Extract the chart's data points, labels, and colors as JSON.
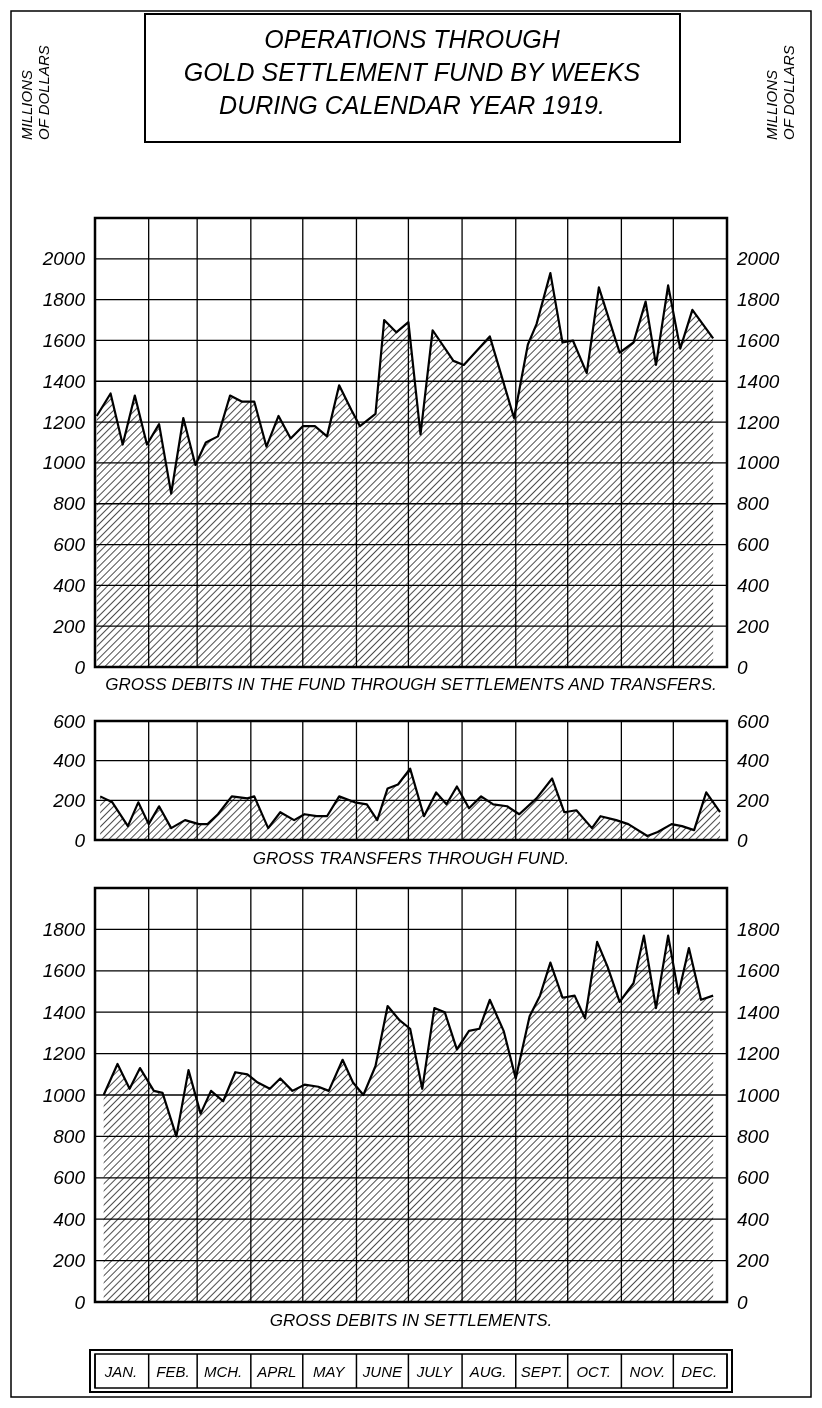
{
  "chart_data": [
    {
      "type": "area",
      "title": "OPERATIONS THROUGH\nGOLD SETTLEMENT FUND BY WEEKS\nDURING CALENDAR YEAR 1919.",
      "ylabel": "MILLIONS OF DOLLARS",
      "y2label": "MILLIONS OF DOLLARS",
      "xlabel": "GROSS DEBITS IN THE FUND THROUGH SETTLEMENTS AND TRANSFERS.",
      "xlim": [
        "1919-01-01",
        "1920-01-01"
      ],
      "xticks": [
        {
          "value": "1919-01-01",
          "label": null
        },
        {
          "value": "1919-02-01",
          "label": null
        },
        {
          "value": "1919-03-01",
          "label": null
        },
        {
          "value": "1919-04-01",
          "label": null
        },
        {
          "value": "1919-05-01",
          "label": null
        },
        {
          "value": "1919-06-01",
          "label": null
        },
        {
          "value": "1919-07-01",
          "label": null
        },
        {
          "value": "1919-08-01",
          "label": null
        },
        {
          "value": "1919-09-01",
          "label": null
        },
        {
          "value": "1919-10-01",
          "label": null
        },
        {
          "value": "1919-11-01",
          "label": null
        },
        {
          "value": "1919-12-01",
          "label": null
        },
        {
          "value": "1920-01-01",
          "label": null
        }
      ],
      "ylim": [
        0,
        2200
      ],
      "yticks": [
        0,
        200,
        400,
        600,
        800,
        1000,
        1200,
        1400,
        1600,
        1800,
        2000
      ],
      "y2lim": [
        0,
        2200
      ],
      "y2ticks": [
        0,
        200,
        400,
        600,
        800,
        1000,
        1200,
        1400,
        1600,
        1800,
        2000
      ],
      "grid": true,
      "tick_labels": "y",
      "series": [
        {
          "color": "#000000",
          "x": [
            "1919-01-02",
            "1919-01-10",
            "1919-01-17",
            "1919-01-24",
            "1919-01-31",
            "1919-02-07",
            "1919-02-14",
            "1919-02-21",
            "1919-02-28",
            "1919-03-06",
            "1919-03-13",
            "1919-03-20",
            "1919-03-27",
            "1919-04-03",
            "1919-04-10",
            "1919-04-17",
            "1919-04-24",
            "1919-05-01",
            "1919-05-08",
            "1919-05-15",
            "1919-05-22",
            "1919-05-29",
            "1919-06-03",
            "1919-06-12",
            "1919-06-17",
            "1919-06-24",
            "1919-07-01",
            "1919-07-08",
            "1919-07-15",
            "1919-07-27",
            "1919-08-02",
            "1919-08-17",
            "1919-08-31",
            "1919-09-08",
            "1919-09-13",
            "1919-09-21",
            "1919-09-28",
            "1919-10-04",
            "1919-10-12",
            "1919-10-19",
            "1919-10-31",
            "1919-11-08",
            "1919-11-15",
            "1919-11-21",
            "1919-11-28",
            "1919-12-05",
            "1919-12-12",
            "1919-12-24"
          ],
          "values": [
            1230,
            1340,
            1090,
            1330,
            1090,
            1190,
            850,
            1220,
            990,
            1100,
            1130,
            1330,
            1300,
            1300,
            1080,
            1230,
            1120,
            1180,
            1180,
            1130,
            1380,
            1260,
            1180,
            1240,
            1700,
            1640,
            1690,
            1140,
            1650,
            1500,
            1480,
            1620,
            1220,
            1580,
            1680,
            1930,
            1590,
            1600,
            1440,
            1860,
            1540,
            1590,
            1790,
            1480,
            1870,
            1560,
            1750,
            1610
          ]
        }
      ]
    },
    {
      "type": "area",
      "xlabel": "GROSS TRANSFERS THROUGH FUND.",
      "xlim": [
        "1919-01-01",
        "1920-01-01"
      ],
      "xticks": [
        {
          "value": "1919-01-01",
          "label": null
        },
        {
          "value": "1919-02-01",
          "label": null
        },
        {
          "value": "1919-03-01",
          "label": null
        },
        {
          "value": "1919-04-01",
          "label": null
        },
        {
          "value": "1919-05-01",
          "label": null
        },
        {
          "value": "1919-06-01",
          "label": null
        },
        {
          "value": "1919-07-01",
          "label": null
        },
        {
          "value": "1919-08-01",
          "label": null
        },
        {
          "value": "1919-09-01",
          "label": null
        },
        {
          "value": "1919-10-01",
          "label": null
        },
        {
          "value": "1919-11-01",
          "label": null
        },
        {
          "value": "1919-12-01",
          "label": null
        },
        {
          "value": "1920-01-01",
          "label": null
        }
      ],
      "ylim": [
        0,
        600
      ],
      "yticks": [
        0,
        200,
        400,
        600
      ],
      "y2lim": [
        0,
        600
      ],
      "y2ticks": [
        0,
        200,
        400,
        600
      ],
      "grid": true,
      "tick_labels": "y",
      "series": [
        {
          "color": "#000000",
          "x": [
            "1919-01-04",
            "1919-01-11",
            "1919-01-20",
            "1919-01-26",
            "1919-02-01",
            "1919-02-07",
            "1919-02-14",
            "1919-02-22",
            "1919-03-02",
            "1919-03-07",
            "1919-03-13",
            "1919-03-21",
            "1919-03-30",
            "1919-04-03",
            "1919-04-11",
            "1919-04-18",
            "1919-04-26",
            "1919-05-02",
            "1919-05-09",
            "1919-05-15",
            "1919-05-22",
            "1919-05-31",
            "1919-06-07",
            "1919-06-13",
            "1919-06-19",
            "1919-06-25",
            "1919-07-02",
            "1919-07-10",
            "1919-07-17",
            "1919-07-23",
            "1919-07-29",
            "1919-08-05",
            "1919-08-12",
            "1919-08-19",
            "1919-08-27",
            "1919-09-03",
            "1919-09-13",
            "1919-09-22",
            "1919-09-29",
            "1919-10-06",
            "1919-10-15",
            "1919-10-20",
            "1919-10-29",
            "1919-11-05",
            "1919-11-16",
            "1919-11-22",
            "1919-11-30",
            "1919-12-06",
            "1919-12-13",
            "1919-12-20",
            "1919-12-28"
          ],
          "values": [
            220,
            190,
            70,
            190,
            80,
            170,
            60,
            100,
            80,
            80,
            130,
            220,
            210,
            220,
            60,
            140,
            100,
            130,
            120,
            120,
            220,
            190,
            180,
            100,
            260,
            280,
            360,
            120,
            240,
            180,
            270,
            160,
            220,
            180,
            170,
            130,
            210,
            310,
            140,
            150,
            60,
            120,
            100,
            80,
            20,
            40,
            80,
            70,
            50,
            240,
            140
          ]
        }
      ]
    },
    {
      "type": "area",
      "xlabel": "GROSS DEBITS IN SETTLEMENTS.",
      "xlim": [
        "1919-01-01",
        "1920-01-01"
      ],
      "xticks": [
        {
          "value": "1919-01-01",
          "label": null
        },
        {
          "value": "1919-01-16",
          "label": "JAN."
        },
        {
          "value": "1919-02-01",
          "label": null
        },
        {
          "value": "1919-02-15",
          "label": "FEB."
        },
        {
          "value": "1919-03-01",
          "label": null
        },
        {
          "value": "1919-03-16",
          "label": "MCH."
        },
        {
          "value": "1919-04-01",
          "label": null
        },
        {
          "value": "1919-04-16",
          "label": "APRL"
        },
        {
          "value": "1919-05-01",
          "label": null
        },
        {
          "value": "1919-05-16",
          "label": "MAY"
        },
        {
          "value": "1919-06-01",
          "label": null
        },
        {
          "value": "1919-06-16",
          "label": "JUNE"
        },
        {
          "value": "1919-07-01",
          "label": null
        },
        {
          "value": "1919-07-16",
          "label": "JULY"
        },
        {
          "value": "1919-08-01",
          "label": null
        },
        {
          "value": "1919-08-16",
          "label": "AUG."
        },
        {
          "value": "1919-09-01",
          "label": null
        },
        {
          "value": "1919-09-16",
          "label": "SEPT."
        },
        {
          "value": "1919-10-01",
          "label": null
        },
        {
          "value": "1919-10-16",
          "label": "OCT."
        },
        {
          "value": "1919-11-01",
          "label": null
        },
        {
          "value": "1919-11-16",
          "label": "NOV."
        },
        {
          "value": "1919-12-01",
          "label": null
        },
        {
          "value": "1919-12-16",
          "label": "DEC."
        },
        {
          "value": "1920-01-01",
          "label": null
        }
      ],
      "ylim": [
        0,
        2000
      ],
      "yticks": [
        0,
        200,
        400,
        600,
        800,
        1000,
        1200,
        1400,
        1600,
        1800
      ],
      "y2lim": [
        0,
        2000
      ],
      "y2ticks": [
        0,
        200,
        400,
        600,
        800,
        1000,
        1200,
        1400,
        1600,
        1800
      ],
      "grid": true,
      "series": [
        {
          "color": "#000000",
          "x": [
            "1919-01-06",
            "1919-01-14",
            "1919-01-21",
            "1919-01-27",
            "1919-02-04",
            "1919-02-09",
            "1919-02-17",
            "1919-02-24",
            "1919-03-03",
            "1919-03-09",
            "1919-03-16",
            "1919-03-23",
            "1919-03-30",
            "1919-04-05",
            "1919-04-12",
            "1919-04-18",
            "1919-04-25",
            "1919-05-02",
            "1919-05-10",
            "1919-05-16",
            "1919-05-24",
            "1919-05-30",
            "1919-06-05",
            "1919-06-12",
            "1919-06-19",
            "1919-06-26",
            "1919-07-02",
            "1919-07-09",
            "1919-07-16",
            "1919-07-22",
            "1919-07-29",
            "1919-08-05",
            "1919-08-11",
            "1919-08-17",
            "1919-08-25",
            "1919-09-01",
            "1919-09-09",
            "1919-09-15",
            "1919-09-21",
            "1919-09-28",
            "1919-10-05",
            "1919-10-11",
            "1919-10-18",
            "1919-10-24",
            "1919-10-31",
            "1919-11-08",
            "1919-11-14",
            "1919-11-21",
            "1919-11-28",
            "1919-12-04",
            "1919-12-10",
            "1919-12-17",
            "1919-12-24"
          ],
          "values": [
            1000,
            1150,
            1030,
            1130,
            1020,
            1010,
            800,
            1120,
            910,
            1020,
            970,
            1110,
            1100,
            1060,
            1030,
            1080,
            1020,
            1050,
            1040,
            1020,
            1170,
            1060,
            1000,
            1140,
            1430,
            1360,
            1320,
            1030,
            1420,
            1400,
            1220,
            1310,
            1320,
            1460,
            1310,
            1080,
            1380,
            1480,
            1640,
            1470,
            1480,
            1370,
            1740,
            1620,
            1450,
            1540,
            1770,
            1420,
            1770,
            1490,
            1710,
            1460,
            1480
          ]
        }
      ]
    }
  ]
}
